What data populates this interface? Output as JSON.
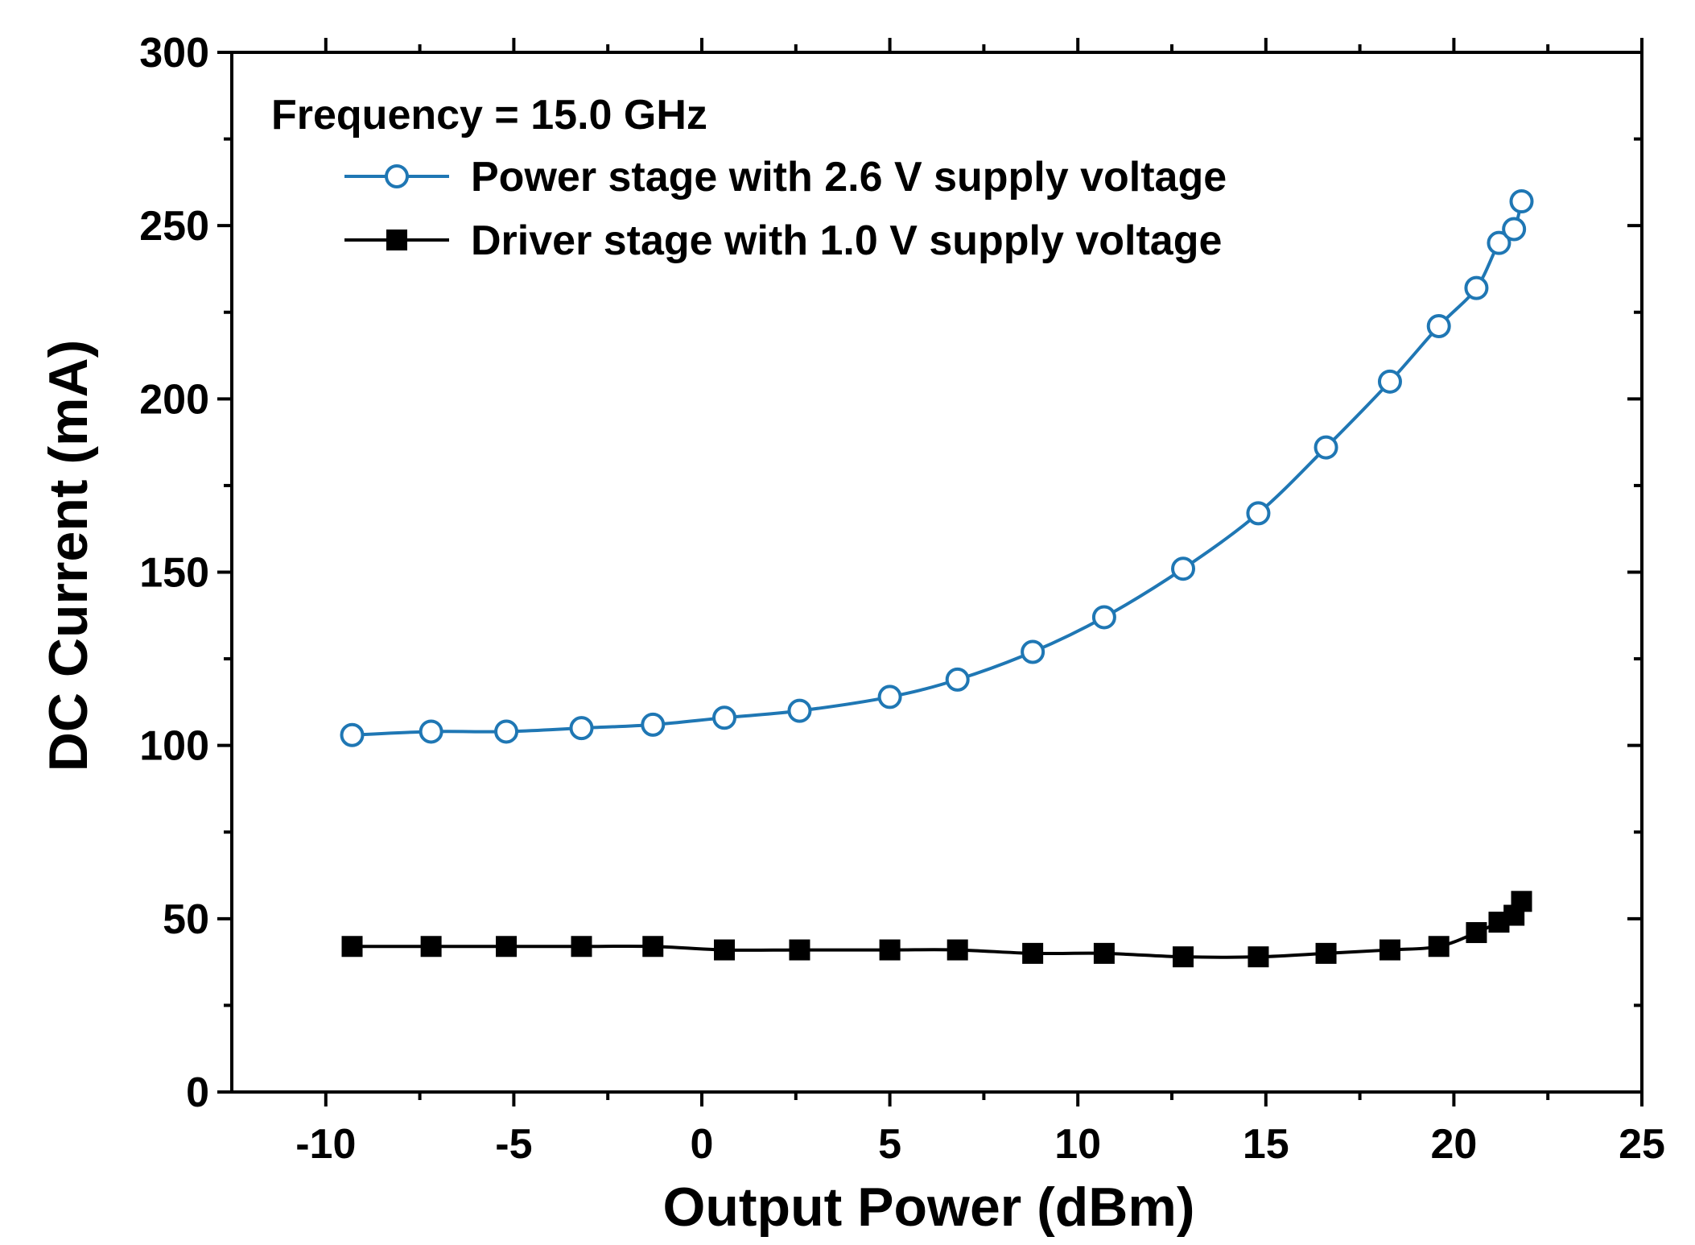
{
  "chart_data": {
    "type": "line",
    "annotation": "Frequency = 15.0 GHz",
    "xlabel": "Output Power (dBm)",
    "ylabel": "DC Current (mA)",
    "xlim": [
      -12.5,
      25
    ],
    "ylim": [
      0,
      300
    ],
    "xticks": [
      -10,
      -5,
      0,
      5,
      10,
      15,
      20,
      25
    ],
    "xtick_labels": [
      "-10",
      "-5",
      "0",
      "5",
      "10",
      "15",
      "20",
      "25"
    ],
    "yticks": [
      0,
      50,
      100,
      150,
      200,
      250,
      300
    ],
    "ytick_labels": [
      "0",
      "50",
      "100",
      "150",
      "200",
      "250",
      "300"
    ],
    "legend_position": "top-left",
    "series": [
      {
        "name": "Power stage with 2.6 V supply voltage",
        "color": "#1f77b4",
        "marker": "open-circle",
        "x": [
          -9.3,
          -7.2,
          -5.2,
          -3.2,
          -1.3,
          0.6,
          2.6,
          5.0,
          6.8,
          8.8,
          10.7,
          12.8,
          14.8,
          16.6,
          18.3,
          19.6,
          20.6,
          21.2,
          21.6,
          21.8
        ],
        "y": [
          103,
          104,
          104,
          105,
          106,
          108,
          110,
          114,
          119,
          127,
          137,
          151,
          167,
          186,
          205,
          221,
          232,
          245,
          249,
          257
        ]
      },
      {
        "name": "Driver stage with 1.0 V supply voltage",
        "color": "#000000",
        "marker": "filled-square",
        "x": [
          -9.3,
          -7.2,
          -5.2,
          -3.2,
          -1.3,
          0.6,
          2.6,
          5.0,
          6.8,
          8.8,
          10.7,
          12.8,
          14.8,
          16.6,
          18.3,
          19.6,
          20.6,
          21.2,
          21.6,
          21.8
        ],
        "y": [
          42,
          42,
          42,
          42,
          42,
          41,
          41,
          41,
          41,
          40,
          40,
          39,
          39,
          40,
          41,
          42,
          46,
          49,
          51,
          55
        ]
      }
    ]
  }
}
